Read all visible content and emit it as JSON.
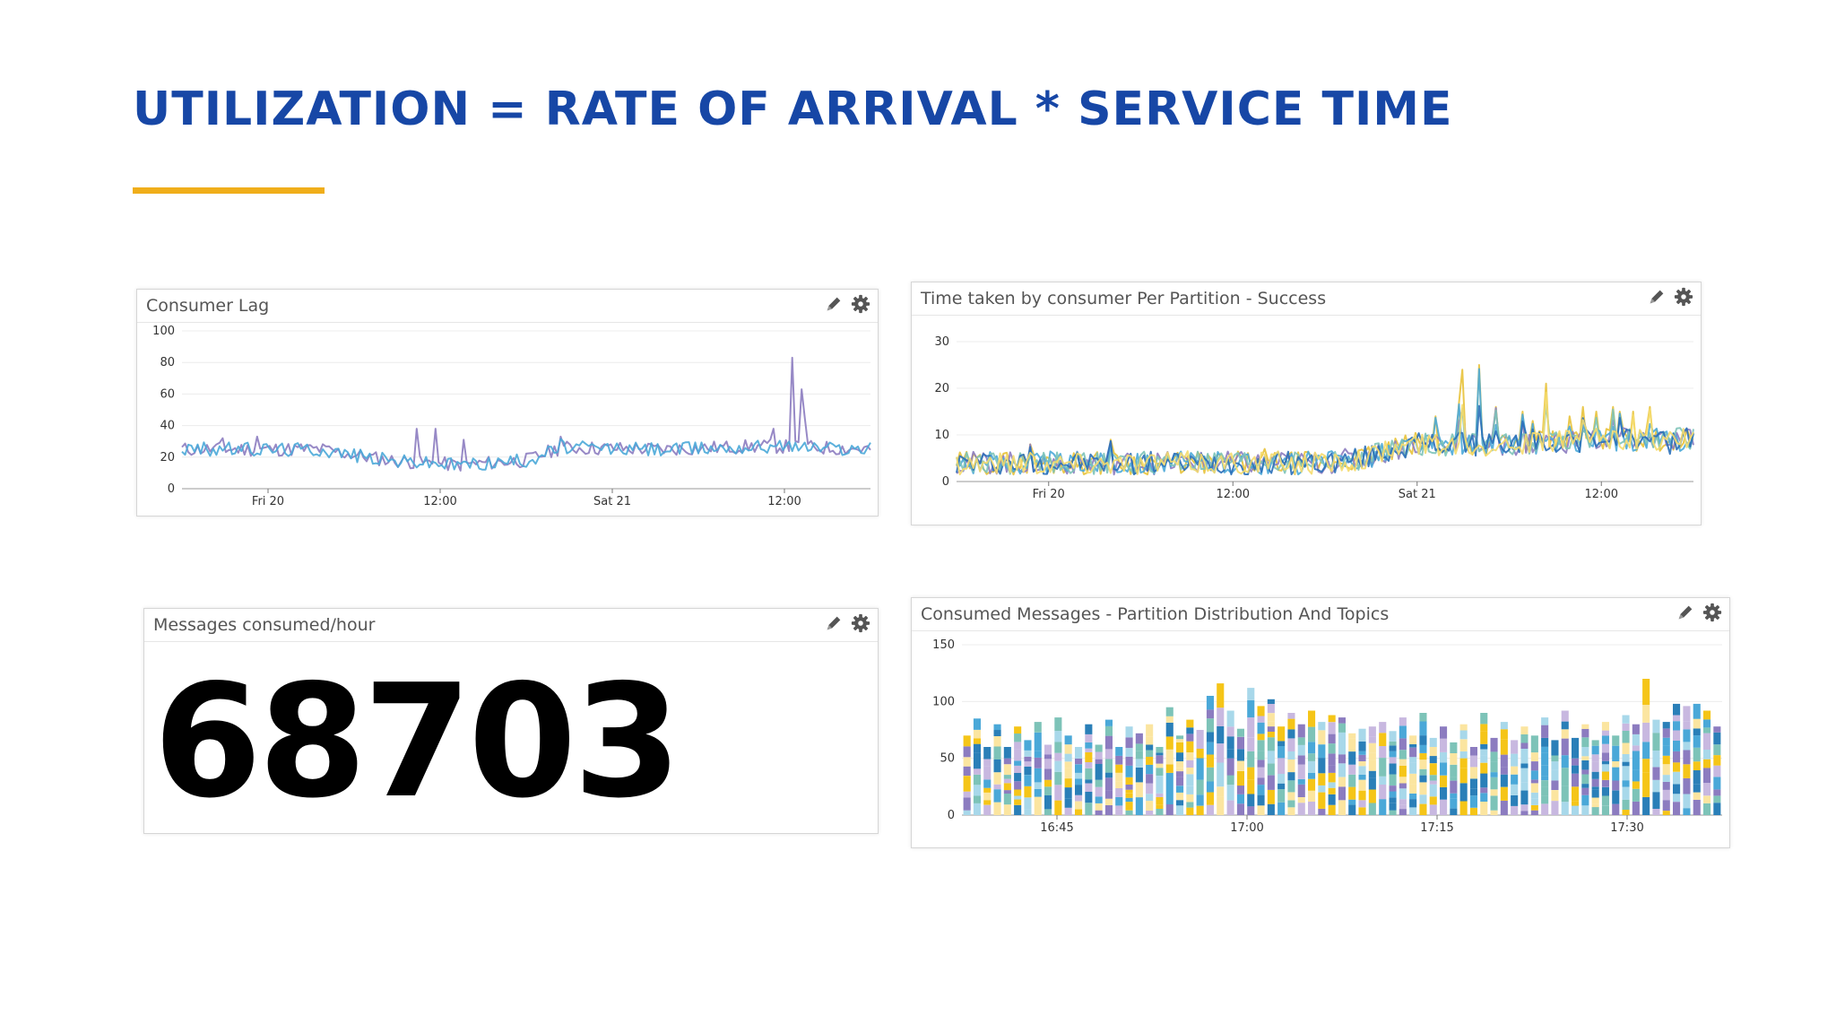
{
  "slide": {
    "title": "UTILIZATION = RATE OF ARRIVAL * SERVICE TIME",
    "underline_color": "#f0ae1a",
    "title_color": "#1747a6"
  },
  "icons": {
    "edit": "pencil-icon",
    "settings": "gear-icon"
  },
  "widgets": {
    "consumer_lag": {
      "title": "Consumer Lag",
      "chart_data": {
        "type": "line",
        "x_ticks": [
          "Fri 20",
          "12:00",
          "Sat 21",
          "12:00"
        ],
        "y_ticks": [
          0,
          20,
          40,
          60,
          80,
          100
        ],
        "ylim": [
          0,
          100
        ],
        "series_colors": [
          "#8c7cc0",
          "#4aa8d8"
        ],
        "profile": [
          [
            0.0,
            25
          ],
          [
            0.2,
            25
          ],
          [
            0.3,
            18
          ],
          [
            0.4,
            15
          ],
          [
            0.5,
            18
          ],
          [
            0.55,
            26
          ],
          [
            0.7,
            25
          ],
          [
            0.85,
            27
          ],
          [
            1.0,
            25
          ]
        ],
        "spikes": [
          [
            0.06,
            32
          ],
          [
            0.11,
            33
          ],
          [
            0.34,
            38
          ],
          [
            0.37,
            38
          ],
          [
            0.41,
            31
          ],
          [
            0.55,
            33
          ],
          [
            0.86,
            38
          ],
          [
            0.887,
            83
          ],
          [
            0.9,
            63
          ],
          [
            0.905,
            45
          ]
        ]
      }
    },
    "time_per_partition": {
      "title": "Time taken by consumer Per Partition - Success",
      "chart_data": {
        "type": "line",
        "x_ticks": [
          "Fri 20",
          "12:00",
          "Sat 21",
          "12:00"
        ],
        "y_ticks": [
          0,
          10,
          20,
          30
        ],
        "ylim": [
          0,
          30
        ],
        "series_colors": [
          "#e8c23a",
          "#8c7cc0",
          "#4aa8d8",
          "#7dc3b8",
          "#2a6fb8",
          "#f5dc6e"
        ],
        "profile": [
          [
            0.0,
            4
          ],
          [
            0.5,
            4
          ],
          [
            0.55,
            5
          ],
          [
            0.62,
            8
          ],
          [
            0.75,
            8
          ],
          [
            0.88,
            9
          ],
          [
            1.0,
            9
          ]
        ],
        "spikes": [
          [
            0.1,
            8
          ],
          [
            0.21,
            9
          ],
          [
            0.42,
            7
          ],
          [
            0.65,
            14
          ],
          [
            0.68,
            17
          ],
          [
            0.685,
            24
          ],
          [
            0.71,
            25
          ],
          [
            0.73,
            16
          ],
          [
            0.77,
            15
          ],
          [
            0.78,
            13
          ],
          [
            0.8,
            21
          ],
          [
            0.83,
            14
          ],
          [
            0.85,
            16
          ],
          [
            0.87,
            15
          ],
          [
            0.89,
            16
          ],
          [
            0.9,
            15
          ],
          [
            0.92,
            15
          ],
          [
            0.94,
            16
          ],
          [
            0.97,
            9
          ]
        ]
      }
    },
    "messages_consumed": {
      "title": "Messages consumed/hour",
      "value": "68703"
    },
    "consumed_messages": {
      "title": "Consumed Messages - Partition Distribution And Topics",
      "chart_data": {
        "type": "bar",
        "stacked": true,
        "x_ticks": [
          "16:45",
          "17:00",
          "17:15",
          "17:30"
        ],
        "y_ticks": [
          0,
          50,
          100,
          150
        ],
        "ylim": [
          0,
          150
        ],
        "segment_colors": [
          "#f5c518",
          "#8c7cc0",
          "#4aa8d8",
          "#c8b8e0",
          "#a8d8ea",
          "#fbe5a0",
          "#2a7fb8",
          "#7dc3b8"
        ],
        "values": [
          70,
          85,
          60,
          80,
          60,
          78,
          66,
          82,
          62,
          86,
          70,
          60,
          80,
          62,
          84,
          60,
          78,
          72,
          80,
          60,
          95,
          70,
          84,
          75,
          105,
          116,
          92,
          76,
          112,
          96,
          102,
          78,
          90,
          80,
          92,
          82,
          88,
          86,
          72,
          76,
          78,
          82,
          74,
          86,
          70,
          90,
          68,
          78,
          64,
          80,
          60,
          90,
          68,
          82,
          66,
          78,
          70,
          86,
          66,
          92,
          68,
          80,
          66,
          82,
          70,
          88,
          80,
          120,
          84,
          82,
          98,
          96,
          98,
          92,
          78
        ]
      }
    }
  }
}
